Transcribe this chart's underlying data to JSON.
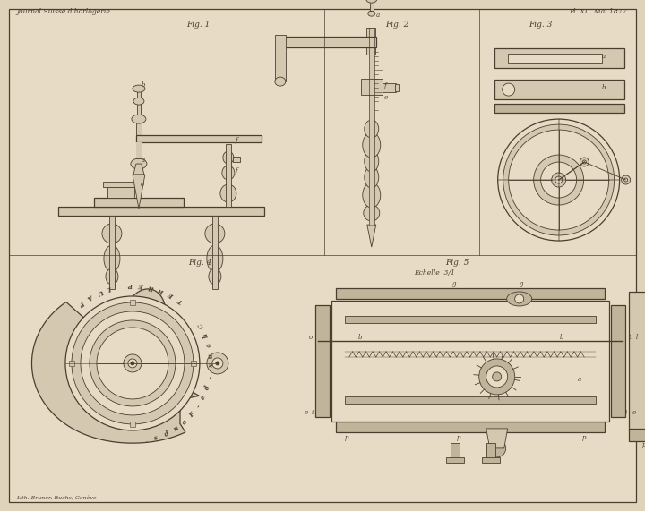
{
  "bg_color": "#e0d3bb",
  "paper_color": "#e8dbc5",
  "line_color": "#4a3f2f",
  "fill_color": "#d5c8b0",
  "fill_dark": "#c0b49a",
  "header_left": "Journal Suisse d'horlogerie",
  "header_right": "Pl. XI.  Mai 1877.",
  "footer": "Lith. Bruner, Ruchs, Genève",
  "fig1_label": "Fig. 1",
  "fig2_label": "Fig. 2",
  "fig3_label": "Fig. 3",
  "fig4_label": "Fig. 4",
  "fig5_label": "Fig. 5",
  "echelle_label": "Echelle  3/1"
}
